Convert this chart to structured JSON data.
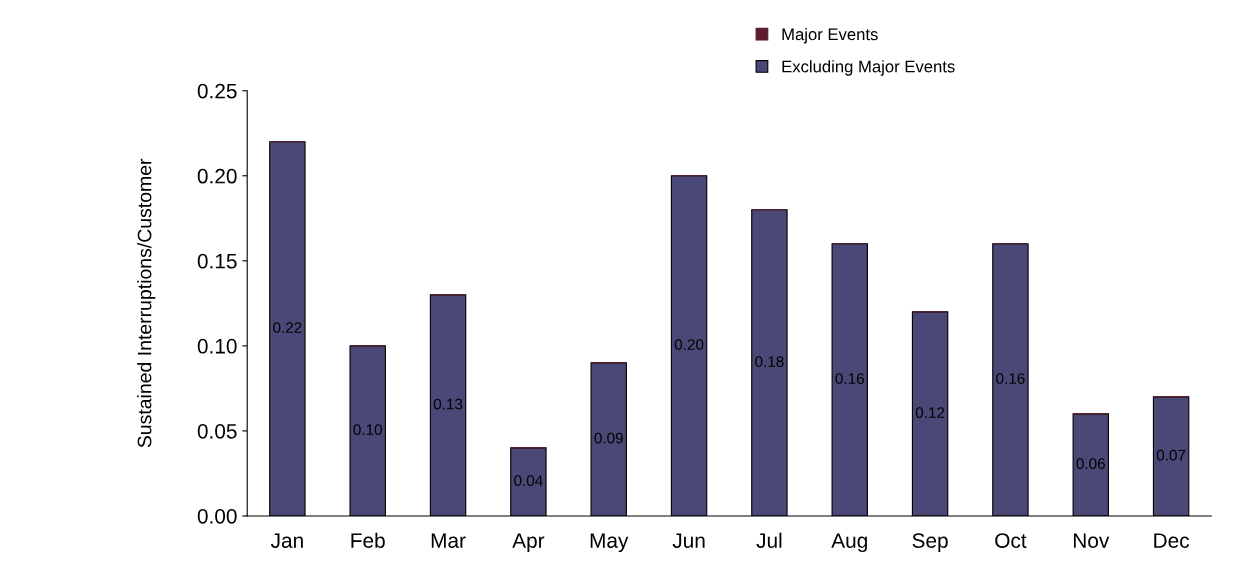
{
  "chart_data": {
    "type": "bar",
    "stacked": true,
    "ylabel": "Sustained Interruptions/Customer",
    "categories": [
      "Jan",
      "Feb",
      "Mar",
      "Apr",
      "May",
      "Jun",
      "Jul",
      "Aug",
      "Sep",
      "Oct",
      "Nov",
      "Dec"
    ],
    "series": [
      {
        "name": "Excluding Major Events",
        "color": "#4a4876",
        "values": [
          0.22,
          0.1,
          0.13,
          0.04,
          0.09,
          0.2,
          0.18,
          0.16,
          0.12,
          0.16,
          0.06,
          0.07
        ],
        "value_labels": [
          "0.22",
          "0.10",
          "0.13",
          "0.04",
          "0.09",
          "0.20",
          "0.18",
          "0.16",
          "0.12",
          "0.16",
          "0.06",
          "0.07"
        ]
      },
      {
        "name": "Major Events",
        "color": "#5c1c2c",
        "values": [
          0,
          0,
          0,
          0,
          0,
          0,
          0,
          0,
          0,
          0,
          0,
          0
        ]
      }
    ],
    "ylim": [
      0,
      0.25
    ],
    "yticks": [
      {
        "value": 0,
        "label": "0.00"
      },
      {
        "value": 0.05,
        "label": "0.05"
      },
      {
        "value": 0.1,
        "label": "0.10"
      },
      {
        "value": 0.15,
        "label": "0.15"
      },
      {
        "value": 0.2,
        "label": "0.20"
      },
      {
        "value": 0.25,
        "label": "0.25"
      }
    ],
    "grid": false,
    "legend": "top right"
  }
}
